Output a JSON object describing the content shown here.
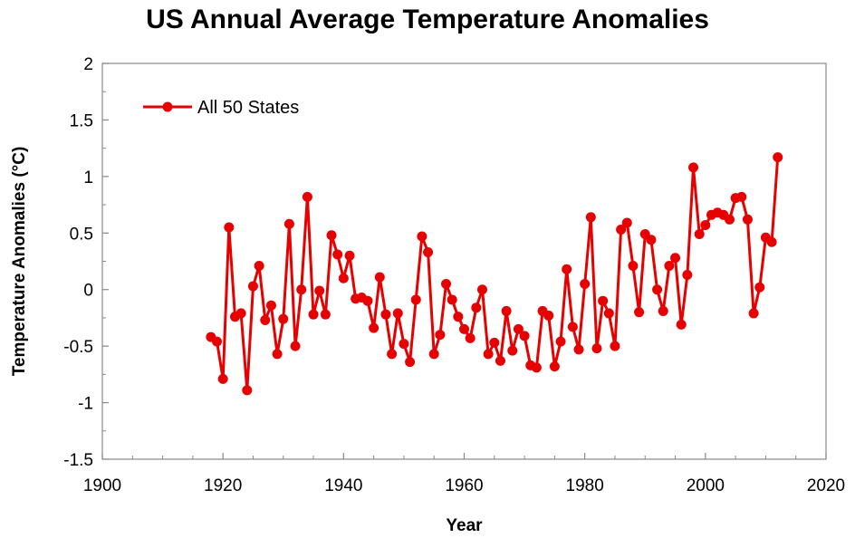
{
  "chart_data": {
    "type": "line",
    "title": "US Annual Average Temperature Anomalies",
    "xlabel": "Year",
    "ylabel": "Temperature Anomalies (°C)",
    "xlim": [
      1900,
      2020
    ],
    "ylim": [
      -1.5,
      2
    ],
    "x_ticks": [
      "1900",
      "1920",
      "1940",
      "1960",
      "1980",
      "2000",
      "2020"
    ],
    "y_ticks": [
      "2",
      "1.5",
      "1",
      "0.5",
      "0",
      "-0.5",
      "-1",
      "-1.5"
    ],
    "grid": false,
    "legend_position": "top-left",
    "series": [
      {
        "name": "All 50 States",
        "color": "#e60000",
        "x": [
          1918,
          1919,
          1920,
          1921,
          1922,
          1923,
          1924,
          1925,
          1926,
          1927,
          1928,
          1929,
          1930,
          1931,
          1932,
          1933,
          1934,
          1935,
          1936,
          1937,
          1938,
          1939,
          1940,
          1941,
          1942,
          1943,
          1944,
          1945,
          1946,
          1947,
          1948,
          1949,
          1950,
          1951,
          1952,
          1953,
          1954,
          1955,
          1956,
          1957,
          1958,
          1959,
          1960,
          1961,
          1962,
          1963,
          1964,
          1965,
          1966,
          1967,
          1968,
          1969,
          1970,
          1971,
          1972,
          1973,
          1974,
          1975,
          1976,
          1977,
          1978,
          1979,
          1980,
          1981,
          1982,
          1983,
          1984,
          1985,
          1986,
          1987,
          1988,
          1989,
          1990,
          1991,
          1992,
          1993,
          1994,
          1995,
          1996,
          1997,
          1998,
          1999,
          2000,
          2001,
          2002,
          2003,
          2004,
          2005,
          2006,
          2007,
          2008,
          2009,
          2010,
          2011,
          2012
        ],
        "y": [
          -0.42,
          -0.46,
          -0.79,
          0.55,
          -0.24,
          -0.21,
          -0.89,
          0.03,
          0.21,
          -0.27,
          -0.14,
          -0.57,
          -0.26,
          0.58,
          -0.5,
          0.0,
          0.82,
          -0.22,
          -0.01,
          -0.22,
          0.48,
          0.31,
          0.1,
          0.3,
          -0.08,
          -0.07,
          -0.1,
          -0.34,
          0.11,
          -0.22,
          -0.57,
          -0.21,
          -0.48,
          -0.64,
          -0.09,
          0.47,
          0.33,
          -0.57,
          -0.4,
          0.05,
          -0.09,
          -0.24,
          -0.35,
          -0.43,
          -0.16,
          0.0,
          -0.57,
          -0.47,
          -0.63,
          -0.19,
          -0.54,
          -0.35,
          -0.41,
          -0.67,
          -0.69,
          -0.19,
          -0.23,
          -0.68,
          -0.46,
          0.18,
          -0.33,
          -0.53,
          0.05,
          0.64,
          -0.52,
          -0.1,
          -0.21,
          -0.5,
          0.53,
          0.59,
          0.21,
          -0.2,
          0.49,
          0.44,
          0.0,
          -0.19,
          0.21,
          0.28,
          -0.31,
          0.13,
          1.08,
          0.49,
          0.57,
          0.66,
          0.68,
          0.66,
          0.62,
          0.81,
          0.82,
          0.62,
          -0.21,
          0.02,
          0.46,
          0.42,
          1.17
        ]
      }
    ]
  }
}
